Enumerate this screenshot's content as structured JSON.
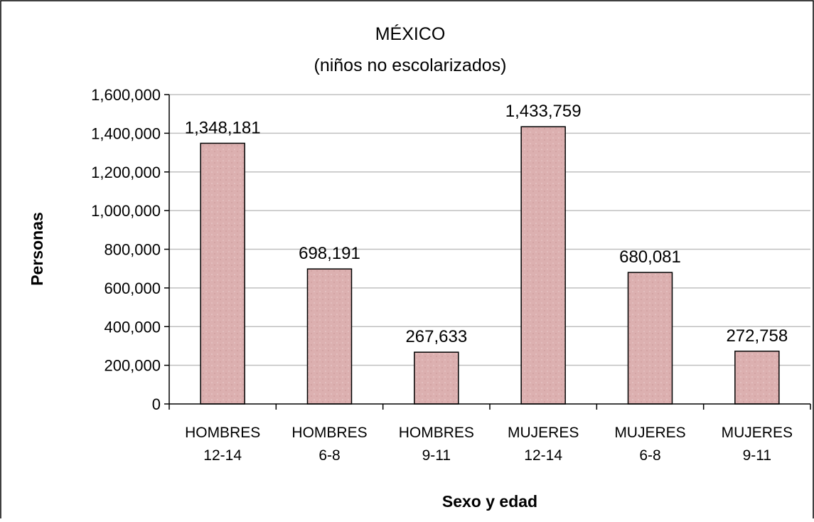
{
  "chart_data": {
    "type": "bar",
    "title": "MÉXICO",
    "subtitle": "(niños no escolarizados)",
    "xlabel": "Sexo y edad",
    "ylabel": "Personas",
    "categories": [
      [
        "HOMBRES",
        "12-14"
      ],
      [
        "HOMBRES",
        "6-8"
      ],
      [
        "HOMBRES",
        "9-11"
      ],
      [
        "MUJERES",
        "12-14"
      ],
      [
        "MUJERES",
        "6-8"
      ],
      [
        "MUJERES",
        "9-11"
      ]
    ],
    "values": [
      1348181,
      698191,
      267633,
      1433759,
      680081,
      272758
    ],
    "value_labels": [
      "1,348,181",
      "698,191",
      "267,633",
      "1,433,759",
      "680,081",
      "272,758"
    ],
    "ylim": [
      0,
      1600000
    ],
    "yticks": [
      0,
      200000,
      400000,
      600000,
      800000,
      1000000,
      1200000,
      1400000,
      1600000
    ],
    "ytick_labels": [
      "0",
      "200,000",
      "400,000",
      "600,000",
      "800,000",
      "1,000,000",
      "1,200,000",
      "1,400,000",
      "1,600,000"
    ],
    "grid": true,
    "legend": "none",
    "colors": {
      "bar_fill": "#dcb0b0",
      "bar_stroke": "#000000",
      "grid": "#c0c0c0",
      "frame": "#000000"
    }
  }
}
